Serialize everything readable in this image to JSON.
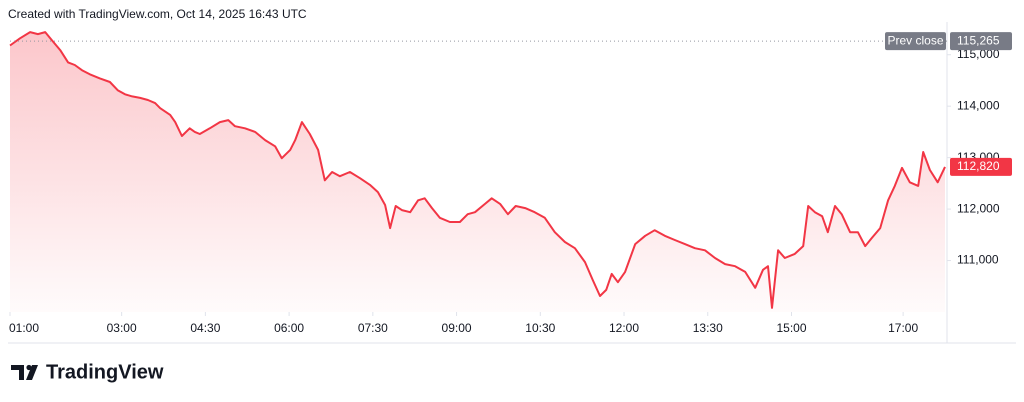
{
  "chart_data": {
    "type": "area-line",
    "title": "Created with TradingView.com, Oct 14, 2025 16:43 UTC",
    "source": "TradingView",
    "color": "#f23645",
    "x": [
      1.0,
      1.18,
      1.36,
      1.5,
      1.63,
      1.75,
      1.9,
      2.04,
      2.16,
      2.29,
      2.43,
      2.61,
      2.79,
      2.93,
      3.06,
      3.19,
      3.33,
      3.47,
      3.6,
      3.69,
      3.87,
      3.96,
      4.08,
      4.22,
      4.31,
      4.4,
      4.58,
      4.76,
      4.91,
      5.03,
      5.21,
      5.39,
      5.57,
      5.75,
      5.87,
      6.02,
      6.11,
      6.23,
      6.37,
      6.52,
      6.64,
      6.77,
      6.91,
      7.09,
      7.27,
      7.45,
      7.59,
      7.72,
      7.81,
      7.91,
      8.02,
      8.17,
      8.31,
      8.43,
      8.56,
      8.7,
      8.88,
      9.06,
      9.2,
      9.33,
      9.51,
      9.63,
      9.78,
      9.92,
      10.06,
      10.23,
      10.4,
      10.58,
      10.76,
      10.94,
      11.12,
      11.3,
      11.44,
      11.57,
      11.68,
      11.78,
      11.89,
      12.02,
      12.2,
      12.38,
      12.55,
      12.73,
      12.91,
      13.09,
      13.27,
      13.45,
      13.63,
      13.81,
      13.99,
      14.17,
      14.35,
      14.49,
      14.58,
      14.65,
      14.76,
      14.88,
      15.06,
      15.21,
      15.3,
      15.42,
      15.55,
      15.65,
      15.78,
      15.9,
      16.05,
      16.19,
      16.32,
      16.44,
      16.59,
      16.73,
      16.85,
      16.98,
      17.12,
      17.27,
      17.36,
      17.48,
      17.62,
      17.75
    ],
    "values": [
      115180,
      115320,
      115440,
      115400,
      115440,
      115280,
      115090,
      114850,
      114800,
      114700,
      114620,
      114540,
      114470,
      114310,
      114230,
      114190,
      114160,
      114120,
      114060,
      113960,
      113830,
      113690,
      113420,
      113570,
      113500,
      113460,
      113570,
      113690,
      113730,
      113610,
      113570,
      113500,
      113340,
      113220,
      112990,
      113150,
      113340,
      113690,
      113460,
      113150,
      112560,
      112720,
      112640,
      112720,
      112600,
      112470,
      112330,
      112080,
      111630,
      112060,
      111980,
      111940,
      112170,
      112210,
      112020,
      111830,
      111750,
      111750,
      111900,
      111940,
      112100,
      112210,
      112100,
      111900,
      112060,
      112020,
      111940,
      111830,
      111550,
      111360,
      111240,
      110970,
      110620,
      110310,
      110430,
      110740,
      110580,
      110780,
      111320,
      111480,
      111590,
      111480,
      111400,
      111320,
      111240,
      111200,
      111050,
      110930,
      110890,
      110780,
      110470,
      110820,
      110890,
      110080,
      111200,
      111050,
      111130,
      111280,
      112060,
      111940,
      111860,
      111550,
      112060,
      111900,
      111550,
      111550,
      111280,
      111440,
      111630,
      112170,
      112450,
      112800,
      112520,
      112450,
      113110,
      112760,
      112520,
      112820
    ],
    "xlim": [
      1,
      17.75
    ],
    "xticks": [
      {
        "value": 1,
        "label": "01:00"
      },
      {
        "value": 3,
        "label": "03:00"
      },
      {
        "value": 4.5,
        "label": "04:30"
      },
      {
        "value": 6,
        "label": "06:00"
      },
      {
        "value": 7.5,
        "label": "07:30"
      },
      {
        "value": 9,
        "label": "09:00"
      },
      {
        "value": 10.5,
        "label": "10:30"
      },
      {
        "value": 12,
        "label": "12:00"
      },
      {
        "value": 13.5,
        "label": "13:30"
      },
      {
        "value": 15,
        "label": "15:00"
      },
      {
        "value": 17,
        "label": "17:00"
      }
    ],
    "ylim": [
      110000,
      115500
    ],
    "yticks": [
      {
        "value": 111000,
        "label": "111,000"
      },
      {
        "value": 112000,
        "label": "112,000"
      },
      {
        "value": 113000,
        "label": "113,000"
      },
      {
        "value": 114000,
        "label": "114,000"
      },
      {
        "value": 115000,
        "label": "115,000"
      }
    ],
    "prev_close": {
      "name": "Prev close",
      "value": 115265,
      "label": "115,265"
    },
    "last_price": {
      "value": 112820,
      "label": "112,820"
    }
  }
}
